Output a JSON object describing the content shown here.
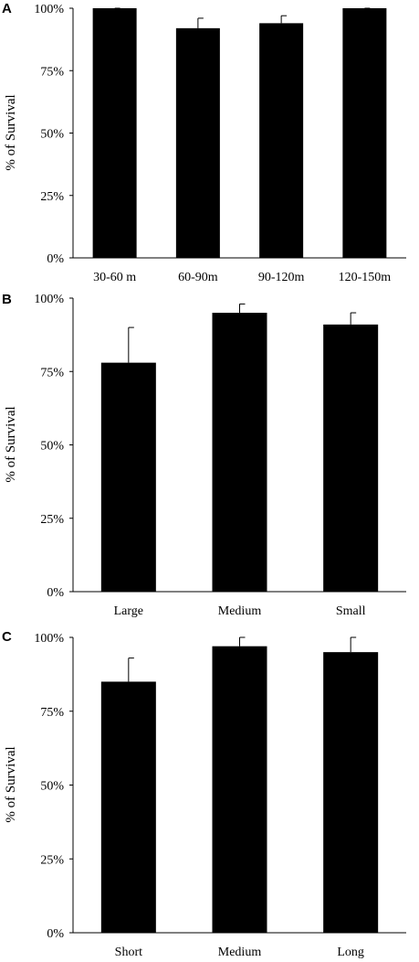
{
  "chart_data": [
    {
      "panel": "A",
      "type": "bar",
      "ylabel": "% of Survival",
      "ylim": [
        0,
        100
      ],
      "yticks": [
        "0%",
        "25%",
        "50%",
        "75%",
        "100%"
      ],
      "categories": [
        "30-60 m",
        "60-90m",
        "90-120m",
        "120-150m"
      ],
      "values": [
        100,
        92,
        94,
        100
      ],
      "errors": [
        0,
        4,
        3,
        0
      ]
    },
    {
      "panel": "B",
      "type": "bar",
      "ylabel": "% of Survival",
      "ylim": [
        0,
        100
      ],
      "yticks": [
        "0%",
        "25%",
        "50%",
        "75%",
        "100%"
      ],
      "categories": [
        "Large",
        "Medium",
        "Small"
      ],
      "values": [
        78,
        95,
        91
      ],
      "errors": [
        12,
        3,
        4
      ]
    },
    {
      "panel": "C",
      "type": "bar",
      "ylabel": "% of Survival",
      "ylim": [
        0,
        100
      ],
      "yticks": [
        "0%",
        "25%",
        "50%",
        "75%",
        "100%"
      ],
      "categories": [
        "Short",
        "Medium",
        "Long"
      ],
      "values": [
        85,
        97,
        95
      ],
      "errors": [
        8,
        3,
        5
      ]
    }
  ],
  "colors": {
    "bar": "#000000",
    "axis": "#000000",
    "background": "#ffffff"
  }
}
